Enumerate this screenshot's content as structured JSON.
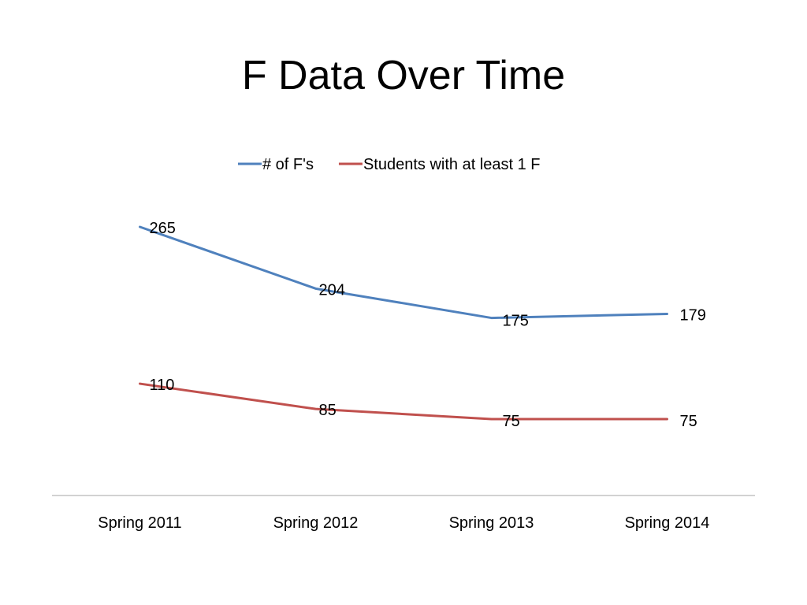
{
  "slide": {
    "title": "F Data Over Time"
  },
  "chart_data": {
    "type": "line",
    "title": "F Data Over Time",
    "xlabel": "",
    "ylabel": "",
    "categories": [
      "Spring 2011",
      "Spring 2012",
      "Spring 2013",
      "Spring 2014"
    ],
    "series": [
      {
        "name": "# of F's",
        "values": [
          265,
          204,
          175,
          179
        ],
        "color": "#4F81BD"
      },
      {
        "name": "Students with at least 1 F",
        "values": [
          110,
          85,
          75,
          75
        ],
        "color": "#C0504D"
      }
    ],
    "ylim": [
      0,
      300
    ],
    "grid": false,
    "y_axis_visible": false,
    "data_labels": true,
    "legend_position": "top"
  },
  "colors": {
    "axis": "#A6A6A6",
    "text": "#000000"
  }
}
